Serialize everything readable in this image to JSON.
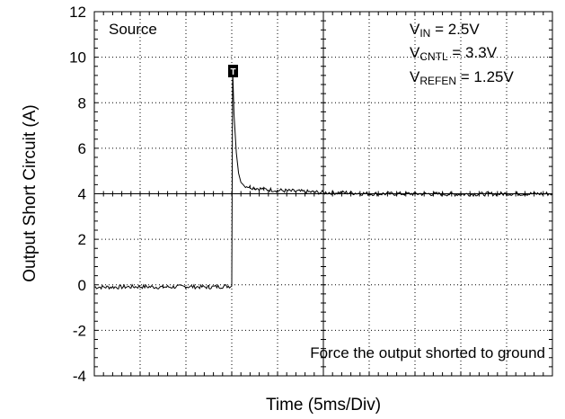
{
  "chart_data": {
    "type": "line",
    "title": "",
    "xlabel": "Time  (5ms/Div)",
    "ylabel": "Output Short Circuit (A)",
    "ylim": [
      -4,
      12
    ],
    "yticks": [
      "12",
      "10",
      "8",
      "6",
      "4",
      "2",
      "0",
      "-2",
      "-4"
    ],
    "x_divisions": 10,
    "y_divisions": 8,
    "grid": true,
    "trigger_marker": "T",
    "annotations": {
      "source": "Source",
      "vin_main": "V",
      "vin_sub": "IN",
      "vin_value": " = 2.5V",
      "vcntl_main": "V",
      "vcntl_sub": "CNTL",
      "vcntl_value": " = 3.3V",
      "vrefen_main": "V",
      "vrefen_sub": "REFEN",
      "vrefen_value": " = 1.25V",
      "footer": "Force the output shorted to ground"
    },
    "series": [
      {
        "x": [
          0,
          0.5,
          1.0,
          1.5,
          2.0,
          2.5,
          3.0,
          3.02,
          3.05,
          3.1,
          3.15,
          3.2,
          3.25,
          3.3,
          3.4,
          3.5,
          3.7,
          4.0,
          4.5,
          5.0,
          5.5,
          6.0,
          7.0,
          8.0,
          9.0,
          10.0
        ],
        "y": [
          -0.1,
          -0.1,
          -0.08,
          -0.1,
          -0.08,
          -0.1,
          -0.05,
          9.5,
          7.5,
          5.8,
          4.9,
          4.5,
          4.4,
          4.35,
          4.3,
          4.25,
          4.2,
          4.15,
          4.1,
          4.05,
          4.05,
          4.0,
          4.0,
          3.98,
          4.0,
          4.0
        ]
      }
    ]
  }
}
